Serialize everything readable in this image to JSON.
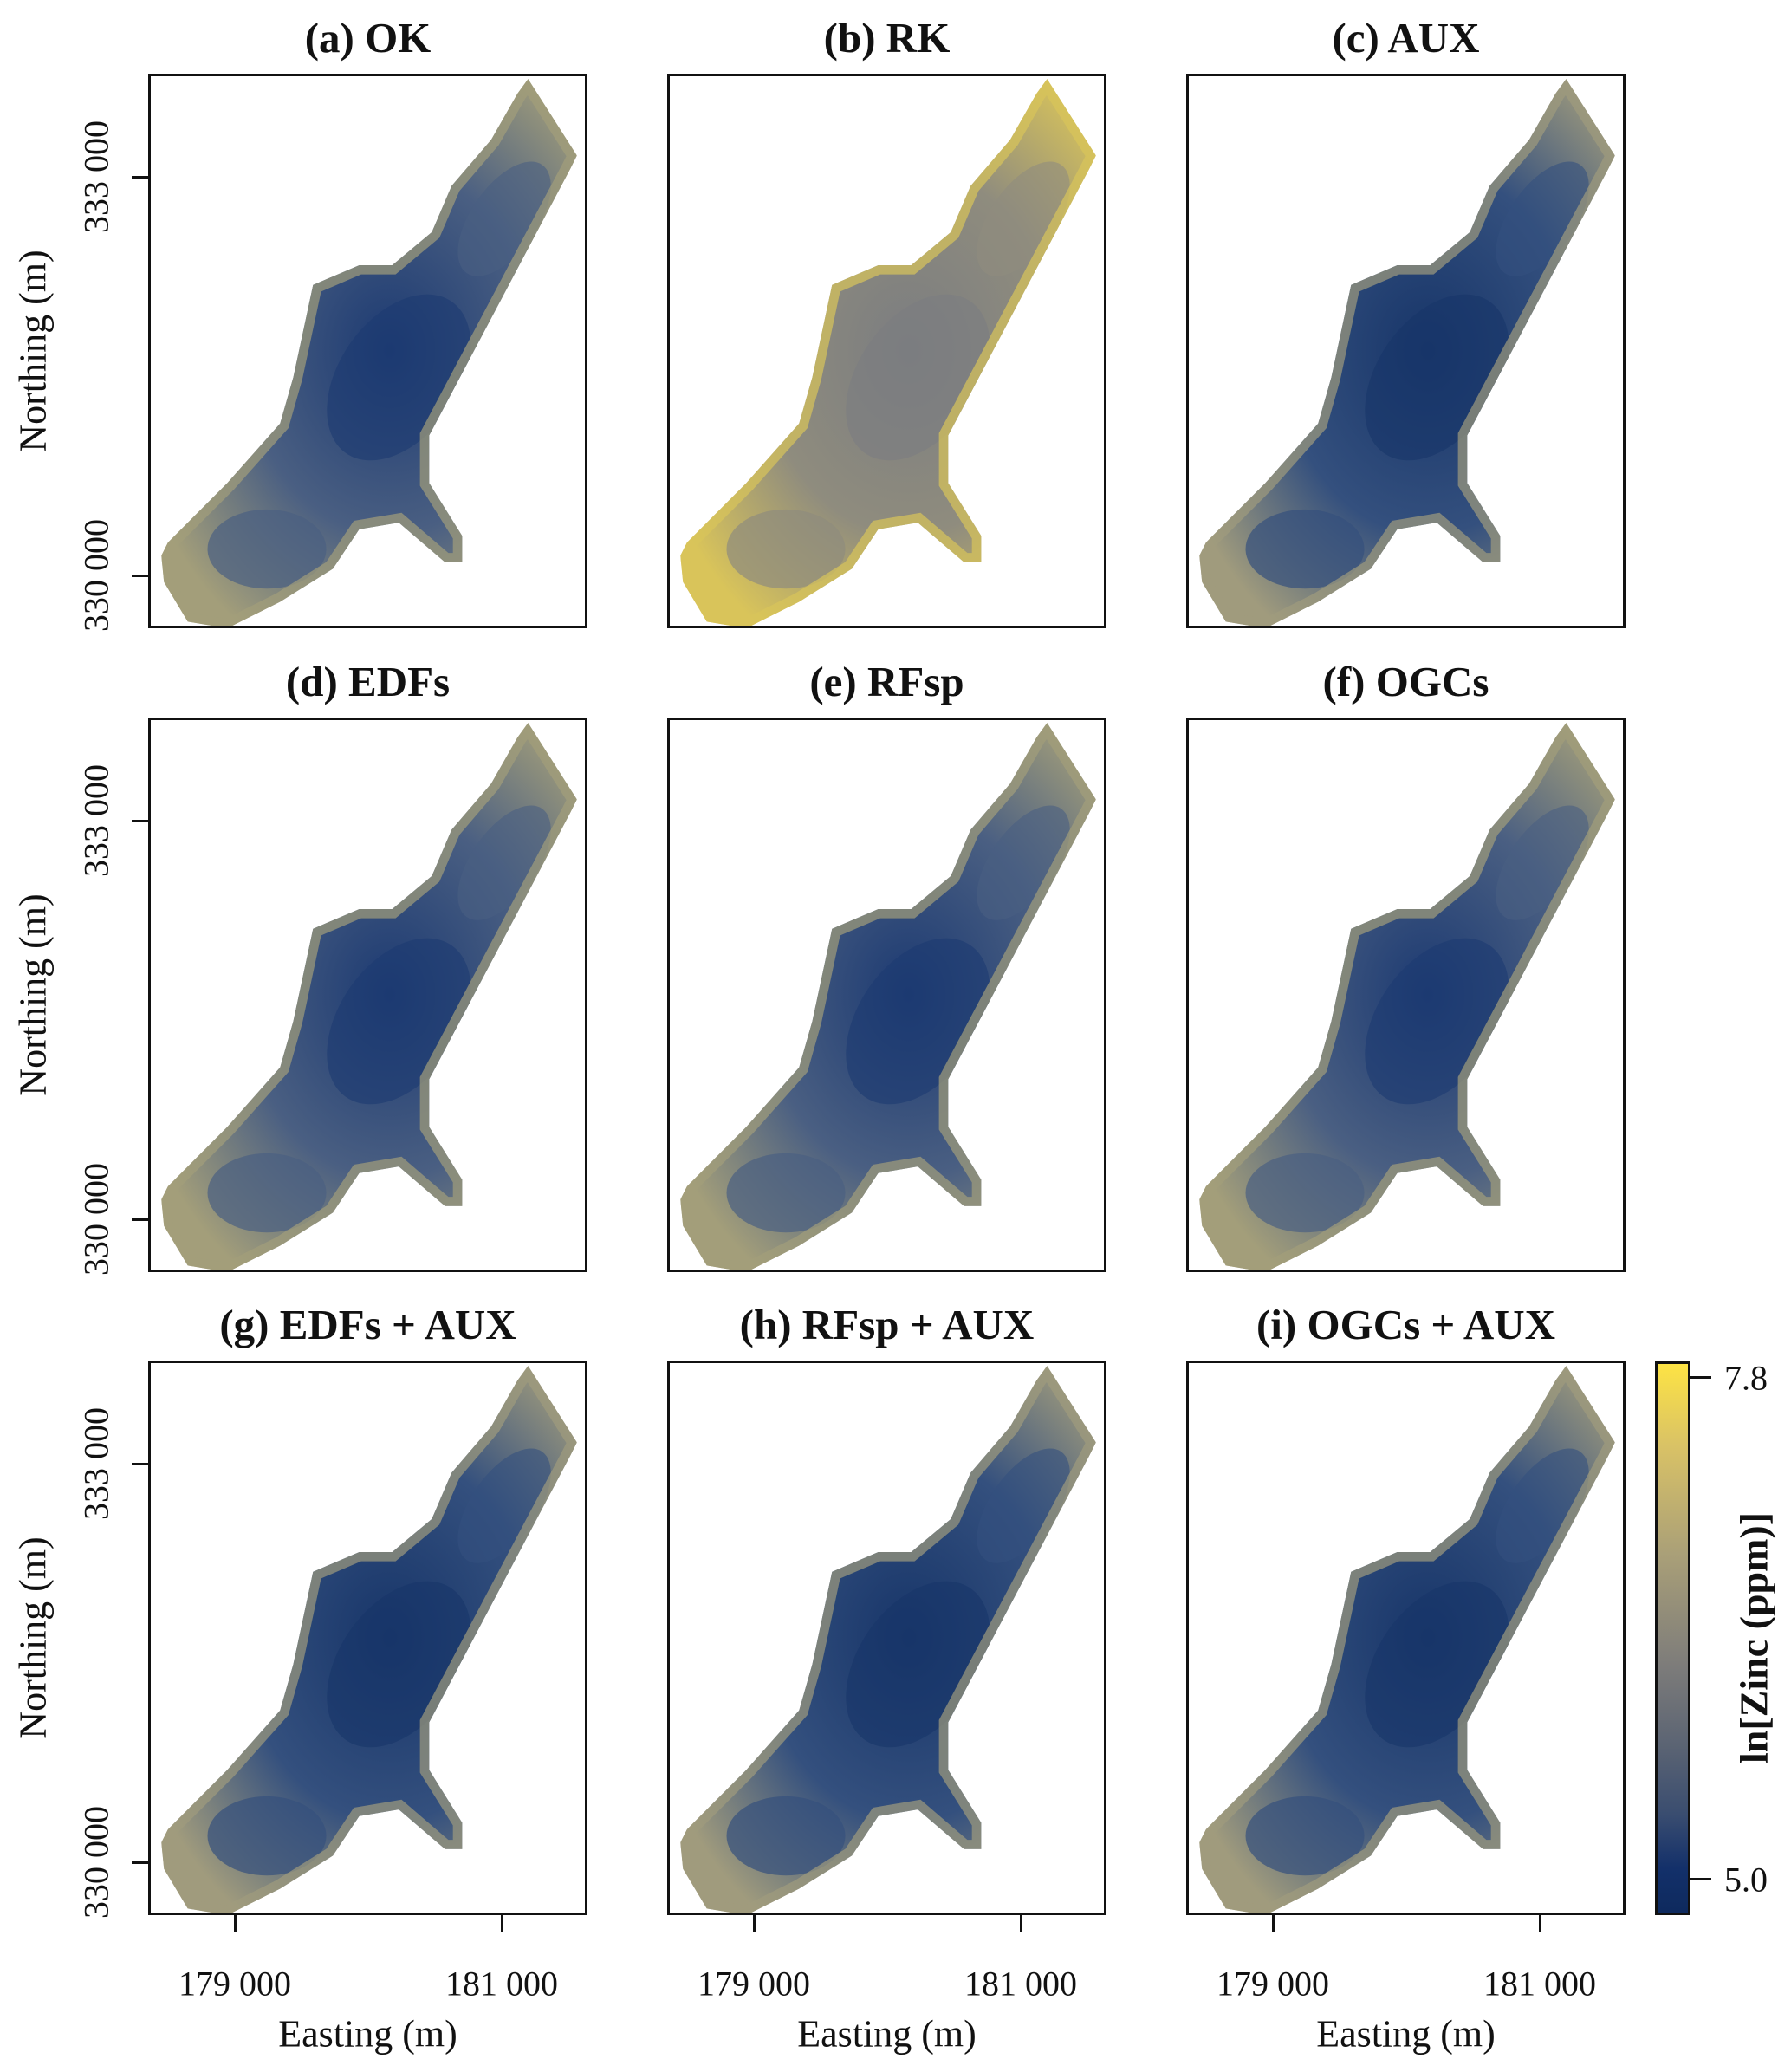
{
  "chart_data": {
    "type": "heatmap",
    "title": "",
    "panels": [
      {
        "label": "(a) OK",
        "tone": "blue"
      },
      {
        "label": "(b) RK",
        "tone": "grey-yellow"
      },
      {
        "label": "(c) AUX",
        "tone": "dark-blue"
      },
      {
        "label": "(d) EDFs",
        "tone": "blue"
      },
      {
        "label": "(e) RFsp",
        "tone": "blue"
      },
      {
        "label": "(f) OGCs",
        "tone": "blue"
      },
      {
        "label": "(g) EDFs + AUX",
        "tone": "dark-blue"
      },
      {
        "label": "(h) RFsp + AUX",
        "tone": "dark-blue"
      },
      {
        "label": "(i) OGCs + AUX",
        "tone": "dark-blue"
      }
    ],
    "xlabel": "Easting (m)",
    "ylabel": "Northing (m)",
    "x_ticks": [
      "179 000",
      "181 000"
    ],
    "y_ticks": [
      "333 000",
      "330 000"
    ],
    "x_tick_values": [
      179000,
      181000
    ],
    "y_tick_values": [
      333000,
      330000
    ],
    "colorbar": {
      "label": "ln[Zinc (ppm)]",
      "min": 5.0,
      "max": 7.8,
      "tick_labels": [
        "7.8",
        "5.0"
      ],
      "low_color": "#0e2a5e",
      "mid_color": "#7d7c7a",
      "high_color": "#fde344"
    }
  }
}
